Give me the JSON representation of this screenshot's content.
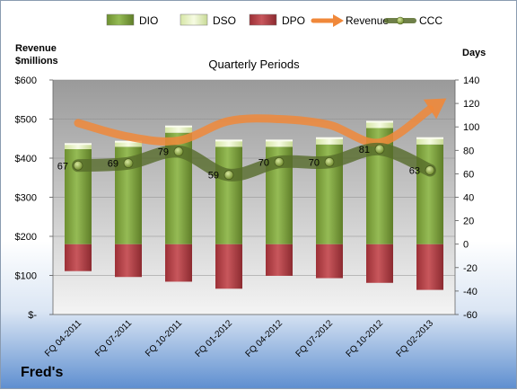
{
  "chart_data": {
    "type": "bar",
    "title": "Quarterly Periods",
    "company": "Fred's",
    "categories": [
      "FQ 04-2011",
      "FQ 07-2011",
      "FQ 10-2011",
      "FQ 01-2012",
      "FQ 04-2012",
      "FQ 07-2012",
      "FQ 10-2012",
      "FQ 02-2013"
    ],
    "left_axis": {
      "label_line1": "Revenue",
      "label_line2": "$millions",
      "ylim": [
        0,
        600
      ],
      "ticks": [
        0,
        100,
        200,
        300,
        400,
        500,
        600
      ],
      "tick_labels": [
        "$-",
        "$100",
        "$200",
        "$300",
        "$400",
        "$500",
        "$600"
      ]
    },
    "right_axis": {
      "label": "Days",
      "ylim": [
        -60,
        140
      ],
      "ticks": [
        -60,
        -40,
        -20,
        0,
        20,
        40,
        60,
        80,
        100,
        120,
        140
      ],
      "tick_labels": [
        "-60",
        "-40",
        "-20",
        "0",
        "20",
        "40",
        "60",
        "80",
        "100",
        "120",
        "140"
      ]
    },
    "legend": [
      "DIO",
      "DSO",
      "DPO",
      "Revenue",
      "CCC"
    ],
    "legend_position": "top",
    "series": [
      {
        "name": "DIO",
        "axis": "days",
        "values": [
          81,
          83,
          95,
          83,
          83,
          85,
          99,
          85
        ]
      },
      {
        "name": "DSO",
        "axis": "days",
        "values": [
          4,
          4,
          5,
          5,
          5,
          5,
          5,
          5
        ]
      },
      {
        "name": "DPO",
        "axis": "days",
        "values": [
          -23,
          -28,
          -32,
          -38,
          -27,
          -29,
          -33,
          -39
        ]
      },
      {
        "name": "Revenue",
        "axis": "revenue",
        "values": [
          490,
          455,
          445,
          495,
          500,
          485,
          440,
          525
        ]
      },
      {
        "name": "CCC",
        "axis": "days",
        "values": [
          67,
          69,
          79,
          59,
          70,
          70,
          81,
          63
        ]
      }
    ],
    "ccc_labels": [
      "67",
      "69",
      "79",
      "59",
      "70",
      "70",
      "81",
      "63"
    ],
    "colors": {
      "DIO": "#7fa040",
      "DSO": "#e8f2c4",
      "DPO": "#b8454a",
      "Revenue": "#f0883a",
      "CCC": "#566b2a",
      "plot_top": "#9e9e9e",
      "plot_bottom": "#f2f2f2"
    }
  }
}
